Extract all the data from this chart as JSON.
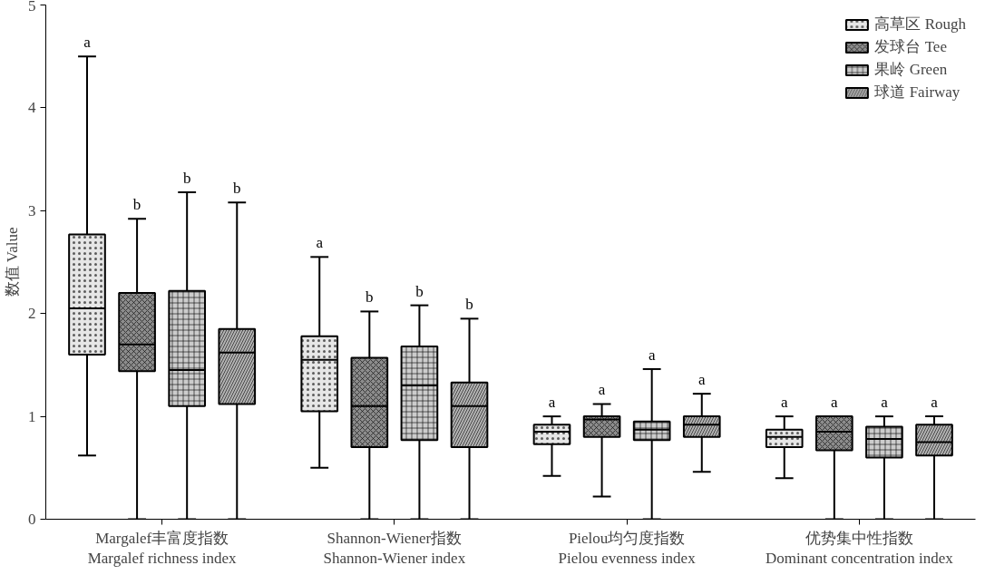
{
  "chart_data": {
    "type": "box",
    "ylabel": "数值 Value",
    "categories": [
      "Margalef丰富度指数\nMargalef richness index",
      "Shannon-Wiener指数\nShannon-Wiener index",
      "Pielou均匀度指数\nPielou evenness index",
      "优势集中性指数\nDominant concentration index"
    ],
    "ylim": [
      0,
      5
    ],
    "yticks": [
      0,
      1,
      2,
      3,
      4,
      5
    ],
    "grid": false,
    "legend": "top right",
    "series": [
      {
        "name": "高草区 Rough",
        "color": "#e6e6e6",
        "value_labels": [
          "a",
          "a",
          "a",
          "a"
        ],
        "boxes": [
          {
            "low": 0.62,
            "q1": 1.6,
            "median": 2.05,
            "q3": 2.77,
            "high": 4.5
          },
          {
            "low": 0.5,
            "q1": 1.05,
            "median": 1.55,
            "q3": 1.78,
            "high": 2.55
          },
          {
            "low": 0.42,
            "q1": 0.73,
            "median": 0.85,
            "q3": 0.92,
            "high": 1.0
          },
          {
            "low": 0.4,
            "q1": 0.7,
            "median": 0.8,
            "q3": 0.87,
            "high": 1.0
          }
        ]
      },
      {
        "name": "发球台 Tee",
        "color": "#8c8c8c",
        "value_labels": [
          "b",
          "b",
          "a",
          "a"
        ],
        "boxes": [
          {
            "low": 0,
            "q1": 1.44,
            "median": 1.7,
            "q3": 2.2,
            "high": 2.92
          },
          {
            "low": 0,
            "q1": 0.7,
            "median": 1.1,
            "q3": 1.57,
            "high": 2.02
          },
          {
            "low": 0.22,
            "q1": 0.8,
            "median": 0.97,
            "q3": 1.0,
            "high": 1.12
          },
          {
            "low": 0,
            "q1": 0.67,
            "median": 0.85,
            "q3": 1.0,
            "high": 1.0
          }
        ]
      },
      {
        "name": "果岭 Green",
        "color": "#cccccc",
        "value_labels": [
          "b",
          "b",
          "a",
          "a"
        ],
        "boxes": [
          {
            "low": 0,
            "q1": 1.1,
            "median": 1.45,
            "q3": 2.22,
            "high": 3.18
          },
          {
            "low": 0,
            "q1": 0.77,
            "median": 1.3,
            "q3": 1.68,
            "high": 2.08
          },
          {
            "low": 0,
            "q1": 0.77,
            "median": 0.87,
            "q3": 0.95,
            "high": 1.46
          },
          {
            "low": 0,
            "q1": 0.6,
            "median": 0.78,
            "q3": 0.9,
            "high": 1.0
          }
        ]
      },
      {
        "name": "球道 Fairway",
        "color": "#b3b3b3",
        "value_labels": [
          "b",
          "b",
          "a",
          "a"
        ],
        "boxes": [
          {
            "low": 0,
            "q1": 1.12,
            "median": 1.62,
            "q3": 1.85,
            "high": 3.08
          },
          {
            "low": 0,
            "q1": 0.7,
            "median": 1.1,
            "q3": 1.33,
            "high": 1.95
          },
          {
            "low": 0.46,
            "q1": 0.8,
            "median": 0.92,
            "q3": 1.0,
            "high": 1.22
          },
          {
            "low": 0,
            "q1": 0.62,
            "median": 0.75,
            "q3": 0.92,
            "high": 1.0
          }
        ]
      }
    ]
  }
}
